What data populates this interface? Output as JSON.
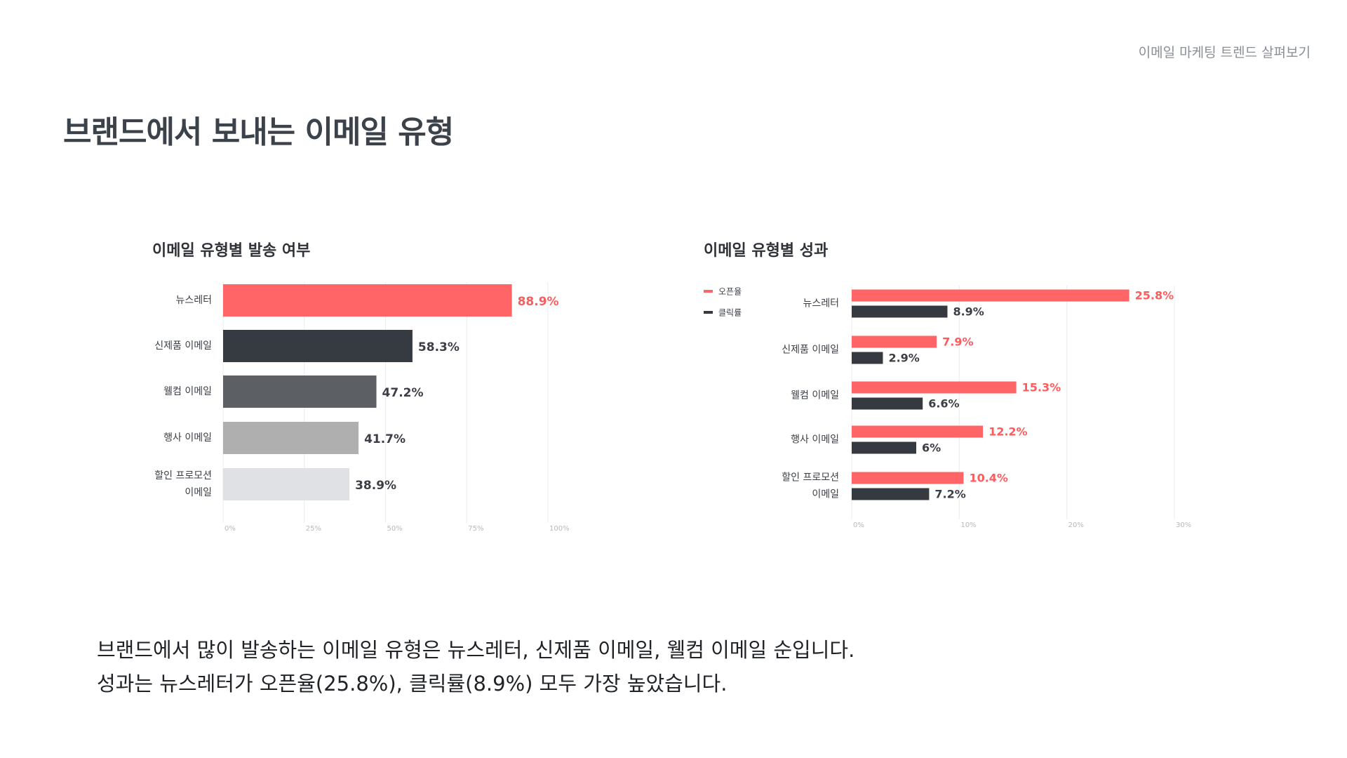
{
  "header": {
    "label": "이메일 마케팅 트렌드 살펴보기"
  },
  "page": {
    "title": "브랜드에서 보내는 이메일 유형"
  },
  "summary": {
    "line1": "브랜드에서 많이 발송하는 이메일 유형은 뉴스레터, 신제품 이메일, 웰컴 이메일 순입니다.",
    "line2": "성과는 뉴스레터가 오픈율(25.8%), 클릭률(8.9%) 모두 가장 높았습니다."
  },
  "chart_data": [
    {
      "type": "bar",
      "orientation": "horizontal",
      "title": "이메일 유형별 발송 여부",
      "categories": [
        [
          "뉴스레터"
        ],
        [
          "신제품 이메일"
        ],
        [
          "웰컴 이메일"
        ],
        [
          "행사 이메일"
        ],
        [
          "할인 프로모션",
          "이메일"
        ]
      ],
      "values": [
        88.9,
        58.3,
        47.2,
        41.7,
        38.9
      ],
      "value_labels": [
        "88.9%",
        "58.3%",
        "47.2%",
        "41.7%",
        "38.9%"
      ],
      "bar_colors": [
        "#ff6466",
        "#363a41",
        "#5c5f63",
        "#afafb0",
        "#e0e1e4"
      ],
      "label_colors": [
        "#ff5a5c",
        "#3b3f45",
        "#3b3f45",
        "#3b3f45",
        "#3b3f45"
      ],
      "xlim": [
        0,
        100
      ],
      "xticks": [
        0,
        25,
        50,
        75,
        100
      ],
      "xtick_labels": [
        "0%",
        "25%",
        "50%",
        "75%",
        "100%"
      ],
      "grid": true
    },
    {
      "type": "bar",
      "orientation": "horizontal",
      "title": "이메일 유형별 성과",
      "categories": [
        [
          "뉴스레터"
        ],
        [
          "신제품 이메일"
        ],
        [
          "웰컴 이메일"
        ],
        [
          "행사 이메일"
        ],
        [
          "할인 프로모션",
          "이메일"
        ]
      ],
      "series": [
        {
          "name": "오픈율",
          "color": "#ff6466",
          "label_color": "#ff5a5c",
          "values": [
            25.8,
            7.9,
            15.3,
            12.2,
            10.4
          ],
          "value_labels": [
            "25.8%",
            "7.9%",
            "15.3%",
            "12.2%",
            "10.4%"
          ]
        },
        {
          "name": "클릭률",
          "color": "#353940",
          "label_color": "#3b3f45",
          "values": [
            8.9,
            2.9,
            6.6,
            6,
            7.2
          ],
          "value_labels": [
            "8.9%",
            "2.9%",
            "6.6%",
            "6%",
            "7.2%"
          ]
        }
      ],
      "xlim": [
        0,
        30
      ],
      "xticks": [
        0,
        10,
        20,
        30
      ],
      "xtick_labels": [
        "0%",
        "10%",
        "20%",
        "30%"
      ],
      "legend": "left",
      "grid": true
    }
  ]
}
